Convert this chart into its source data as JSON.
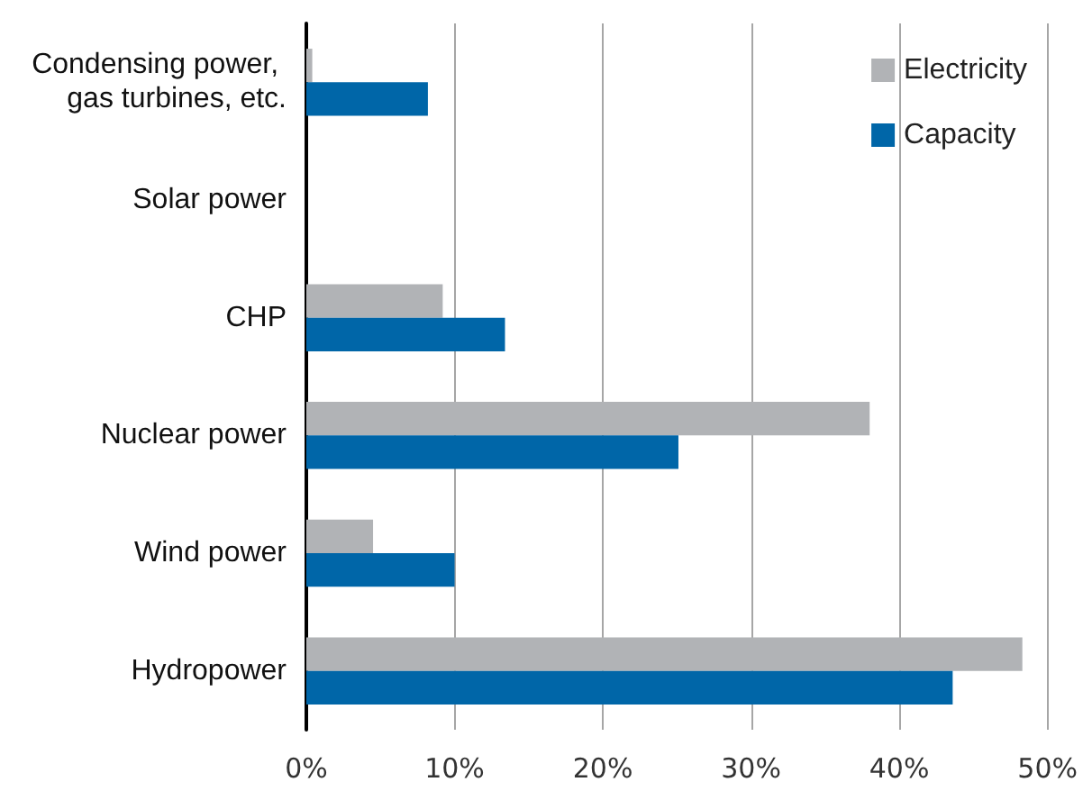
{
  "chart_data": {
    "type": "bar",
    "orientation": "horizontal",
    "categories": [
      "Condensing power, gas turbines, etc.",
      "Solar power",
      "CHP",
      "Nuclear power",
      "Wind power",
      "Hydropower"
    ],
    "series": [
      {
        "name": "Electricity",
        "color": "#b1b3b6",
        "values": [
          0.4,
          0,
          9.2,
          38.0,
          4.5,
          48.3
        ]
      },
      {
        "name": "Capacity",
        "color": "#0066a8",
        "values": [
          8.2,
          0,
          13.4,
          25.1,
          10.0,
          43.6
        ]
      }
    ],
    "xlim": [
      0,
      50
    ],
    "xticks": [
      {
        "value": 0,
        "label": "0%"
      },
      {
        "value": 10,
        "label": "10%"
      },
      {
        "value": 20,
        "label": "20%"
      },
      {
        "value": 30,
        "label": "30%"
      },
      {
        "value": 40,
        "label": "40%"
      },
      {
        "value": 50,
        "label": "50%"
      }
    ],
    "grid": "x",
    "legend": "top right"
  }
}
